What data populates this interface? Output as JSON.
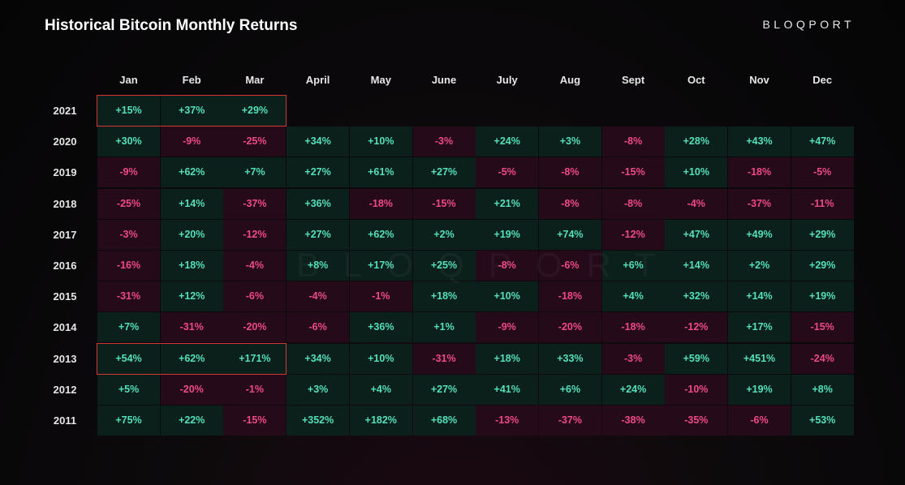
{
  "title": "Historical Bitcoin Monthly Returns",
  "brand": "BLOQPORT",
  "watermark": "BLOQPORT",
  "colors": {
    "positive_text": "#54e0b8",
    "positive_bg": "#0b1f1b",
    "negative_text": "#ef4a86",
    "negative_bg": "#250a1a",
    "highlight_border": "#d23636"
  },
  "chart_data": {
    "type": "heatmap",
    "columns": [
      "Jan",
      "Feb",
      "Mar",
      "April",
      "May",
      "June",
      "July",
      "Aug",
      "Sept",
      "Oct",
      "Nov",
      "Dec"
    ],
    "rows": [
      {
        "year": "2021",
        "values": [
          "+15%",
          "+37%",
          "+29%",
          null,
          null,
          null,
          null,
          null,
          null,
          null,
          null,
          null
        ]
      },
      {
        "year": "2020",
        "values": [
          "+30%",
          "-9%",
          "-25%",
          "+34%",
          "+10%",
          "-3%",
          "+24%",
          "+3%",
          "-8%",
          "+28%",
          "+43%",
          "+47%"
        ]
      },
      {
        "year": "2019",
        "values": [
          "-9%",
          "+62%",
          "+7%",
          "+27%",
          "+61%",
          "+27%",
          "-5%",
          "-8%",
          "-15%",
          "+10%",
          "-18%",
          "-5%"
        ]
      },
      {
        "year": "2018",
        "values": [
          "-25%",
          "+14%",
          "-37%",
          "+36%",
          "-18%",
          "-15%",
          "+21%",
          "-8%",
          "-8%",
          "-4%",
          "-37%",
          "-11%"
        ]
      },
      {
        "year": "2017",
        "values": [
          "-3%",
          "+20%",
          "-12%",
          "+27%",
          "+62%",
          "+2%",
          "+19%",
          "+74%",
          "-12%",
          "+47%",
          "+49%",
          "+29%"
        ]
      },
      {
        "year": "2016",
        "values": [
          "-16%",
          "+18%",
          "-4%",
          "+8%",
          "+17%",
          "+25%",
          "-8%",
          "-6%",
          "+6%",
          "+14%",
          "+2%",
          "+29%"
        ]
      },
      {
        "year": "2015",
        "values": [
          "-31%",
          "+12%",
          "-6%",
          "-4%",
          "-1%",
          "+18%",
          "+10%",
          "-18%",
          "+4%",
          "+32%",
          "+14%",
          "+19%"
        ]
      },
      {
        "year": "2014",
        "values": [
          "+7%",
          "-31%",
          "-20%",
          "-6%",
          "+36%",
          "+1%",
          "-9%",
          "-20%",
          "-18%",
          "-12%",
          "+17%",
          "-15%"
        ]
      },
      {
        "year": "2013",
        "values": [
          "+54%",
          "+62%",
          "+171%",
          "+34%",
          "+10%",
          "-31%",
          "+18%",
          "+33%",
          "-3%",
          "+59%",
          "+451%",
          "-24%"
        ]
      },
      {
        "year": "2012",
        "values": [
          "+5%",
          "-20%",
          "-1%",
          "+3%",
          "+4%",
          "+27%",
          "+41%",
          "+6%",
          "+24%",
          "-10%",
          "+19%",
          "+8%"
        ]
      },
      {
        "year": "2011",
        "values": [
          "+75%",
          "+22%",
          "-15%",
          "+352%",
          "+182%",
          "+68%",
          "-13%",
          "-37%",
          "-38%",
          "-35%",
          "-6%",
          "+53%"
        ]
      }
    ],
    "highlights": [
      {
        "year": "2021",
        "months": [
          "Jan",
          "Feb",
          "Mar"
        ]
      },
      {
        "year": "2013",
        "months": [
          "Jan",
          "Feb",
          "Mar"
        ]
      }
    ]
  }
}
